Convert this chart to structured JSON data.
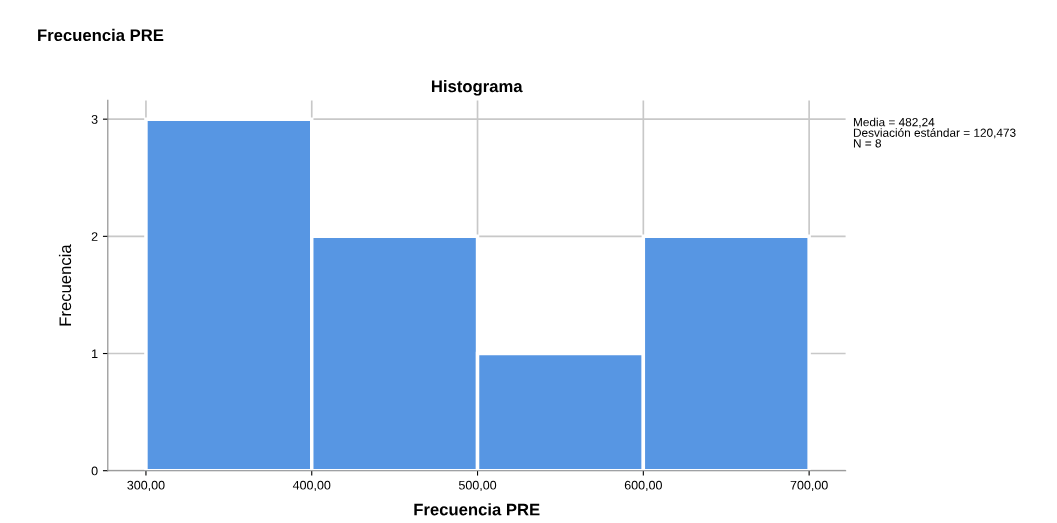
{
  "chart_data": {
    "type": "histogram",
    "title": "Histograma",
    "xlabel": "Frecuencia PRE",
    "ylabel": "Frecuencia",
    "bins": [
      300,
      400,
      500,
      600,
      700
    ],
    "values": [
      3,
      2,
      1,
      2
    ],
    "color": "#5796e3",
    "xlim": [
      277,
      722
    ],
    "ylim": [
      0,
      3.16
    ],
    "xticks": [
      {
        "value": 300,
        "label": "300,00"
      },
      {
        "value": 400,
        "label": "400,00"
      },
      {
        "value": 500,
        "label": "500,00"
      },
      {
        "value": 600,
        "label": "600,00"
      },
      {
        "value": 700,
        "label": "700,00"
      }
    ],
    "yticks": [
      0,
      1,
      2,
      3
    ],
    "grid": true,
    "legend": false,
    "annotations": [
      "Frecuencia PRE",
      "Media = 482,24\nDesviación estándar = 120,473\nN = 8"
    ]
  }
}
